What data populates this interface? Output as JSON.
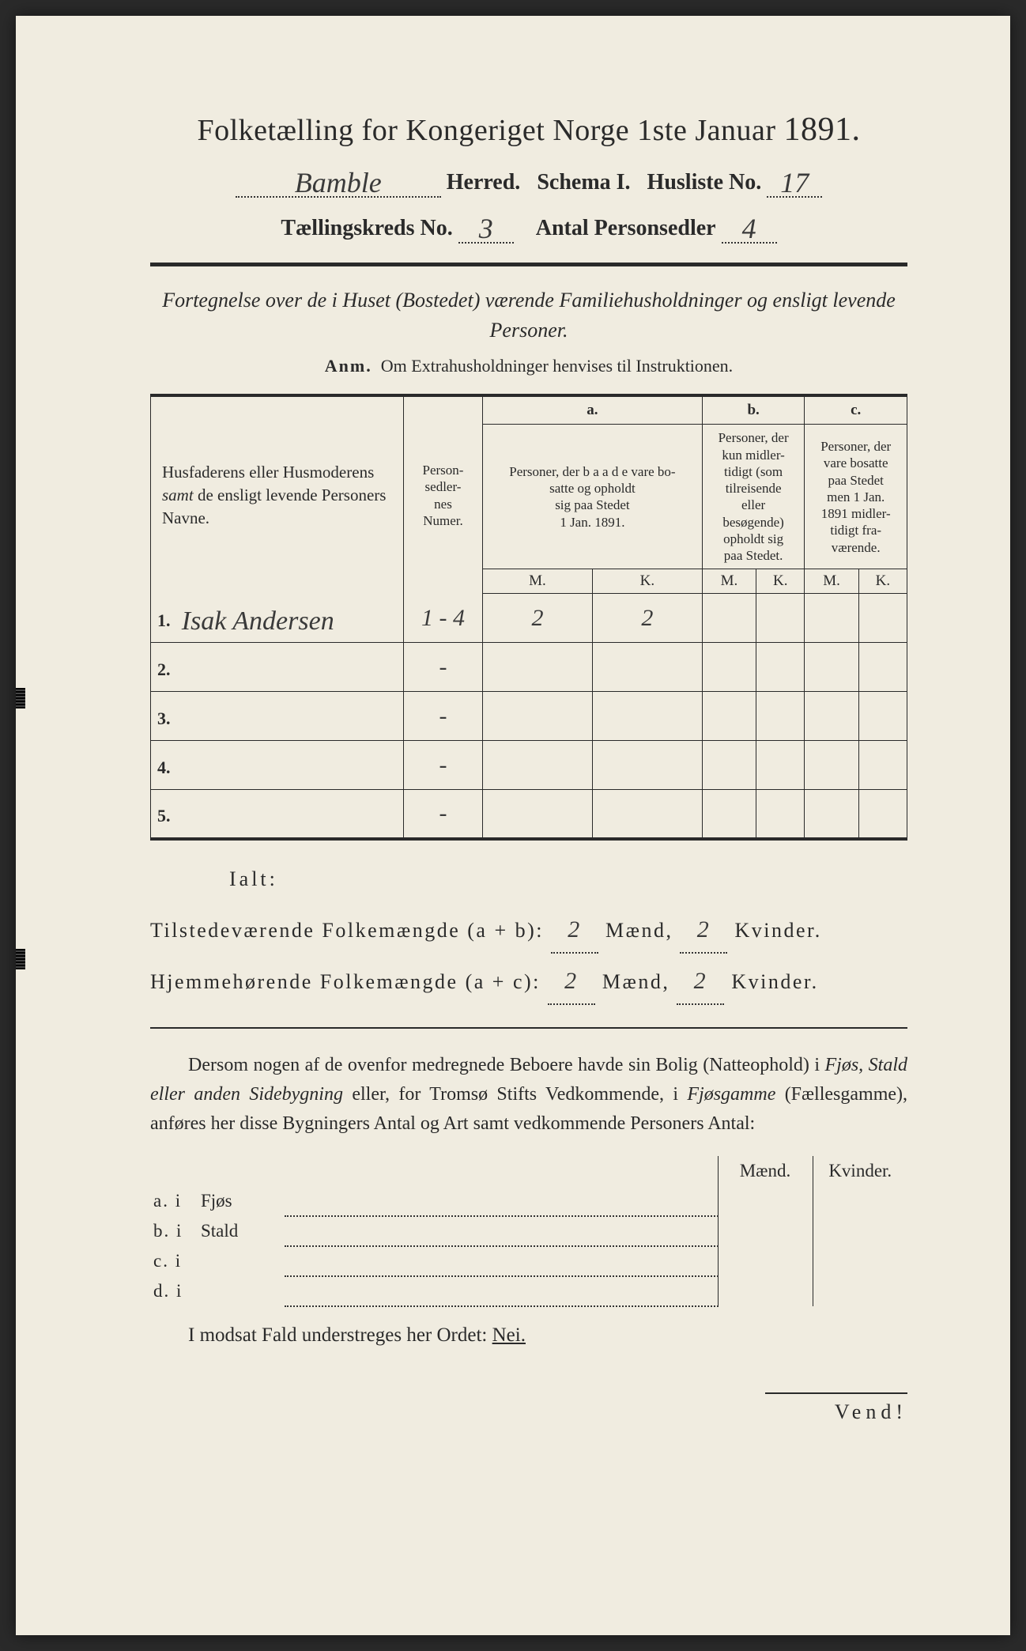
{
  "colors": {
    "paper": "#f0ece0",
    "ink": "#2a2a2a",
    "handwriting": "#3a3a3a",
    "scanner_bg": "#2a2a2a"
  },
  "title": {
    "main": "Folketælling for Kongeriget Norge 1ste Januar",
    "year": "1891."
  },
  "header": {
    "herred_value": "Bamble",
    "herred_label": "Herred.",
    "schema_label": "Schema I.",
    "husliste_label": "Husliste No.",
    "husliste_value": "17",
    "kreds_label": "Tællingskreds No.",
    "kreds_value": "3",
    "antal_label": "Antal Personsedler",
    "antal_value": "4"
  },
  "subtitle": "Fortegnelse over de i Huset (Bostedet) værende Familiehusholdninger og ensligt levende Personer.",
  "anm": {
    "label": "Anm.",
    "text": "Om Extrahusholdninger henvises til Instruktionen."
  },
  "table": {
    "headers": {
      "name": "Husfaderens eller Husmoderens samt de ensligt levende Personers Navne.",
      "numer": "Person-sedler-nes Numer.",
      "a_label": "a.",
      "a_text": "Personer, der baade vare bosatte og opholdt sig paa Stedet 1 Jan. 1891.",
      "b_label": "b.",
      "b_text": "Personer, der kun midlertidigt (som tilreisende eller besøgende) opholdt sig paa Stedet.",
      "c_label": "c.",
      "c_text": "Personer, der vare bosatte paa Stedet men 1 Jan. 1891 midlertidigt fraværende.",
      "M": "M.",
      "K": "K."
    },
    "rows": [
      {
        "n": "1.",
        "name": "Isak Andersen",
        "numer": "1 - 4",
        "aM": "2",
        "aK": "2",
        "bM": "",
        "bK": "",
        "cM": "",
        "cK": ""
      },
      {
        "n": "2.",
        "name": "",
        "numer": "-",
        "aM": "",
        "aK": "",
        "bM": "",
        "bK": "",
        "cM": "",
        "cK": ""
      },
      {
        "n": "3.",
        "name": "",
        "numer": "-",
        "aM": "",
        "aK": "",
        "bM": "",
        "bK": "",
        "cM": "",
        "cK": ""
      },
      {
        "n": "4.",
        "name": "",
        "numer": "-",
        "aM": "",
        "aK": "",
        "bM": "",
        "bK": "",
        "cM": "",
        "cK": ""
      },
      {
        "n": "5.",
        "name": "",
        "numer": "-",
        "aM": "",
        "aK": "",
        "bM": "",
        "bK": "",
        "cM": "",
        "cK": ""
      }
    ]
  },
  "ialt": "Ialt:",
  "totals": {
    "line1_label": "Tilstedeværende Folkemængde (a + b):",
    "line2_label": "Hjemmehørende Folkemængde (a + c):",
    "maend": "Mænd,",
    "kvinder": "Kvinder.",
    "t_m": "2",
    "t_k": "2",
    "h_m": "2",
    "h_k": "2"
  },
  "paragraph": "Dersom nogen af de ovenfor medregnede Beboere havde sin Bolig (Natteophold) i Fjøs, Stald eller anden Sidebygning eller, for Tromsø Stifts Vedkommende, i Fjøsgamme (Fællesgamme), anføres her disse Bygningers Antal og Art samt vedkommende Personers Antal:",
  "bldg": {
    "maend": "Mænd.",
    "kvinder": "Kvinder.",
    "rows": [
      {
        "lbl": "a.  i",
        "type": "Fjøs"
      },
      {
        "lbl": "b.  i",
        "type": "Stald"
      },
      {
        "lbl": "c.  i",
        "type": ""
      },
      {
        "lbl": "d.  i",
        "type": ""
      }
    ]
  },
  "nei": {
    "pre": "I modsat Fald understreges her Ordet: ",
    "word": "Nei."
  },
  "vend": "Vend!"
}
